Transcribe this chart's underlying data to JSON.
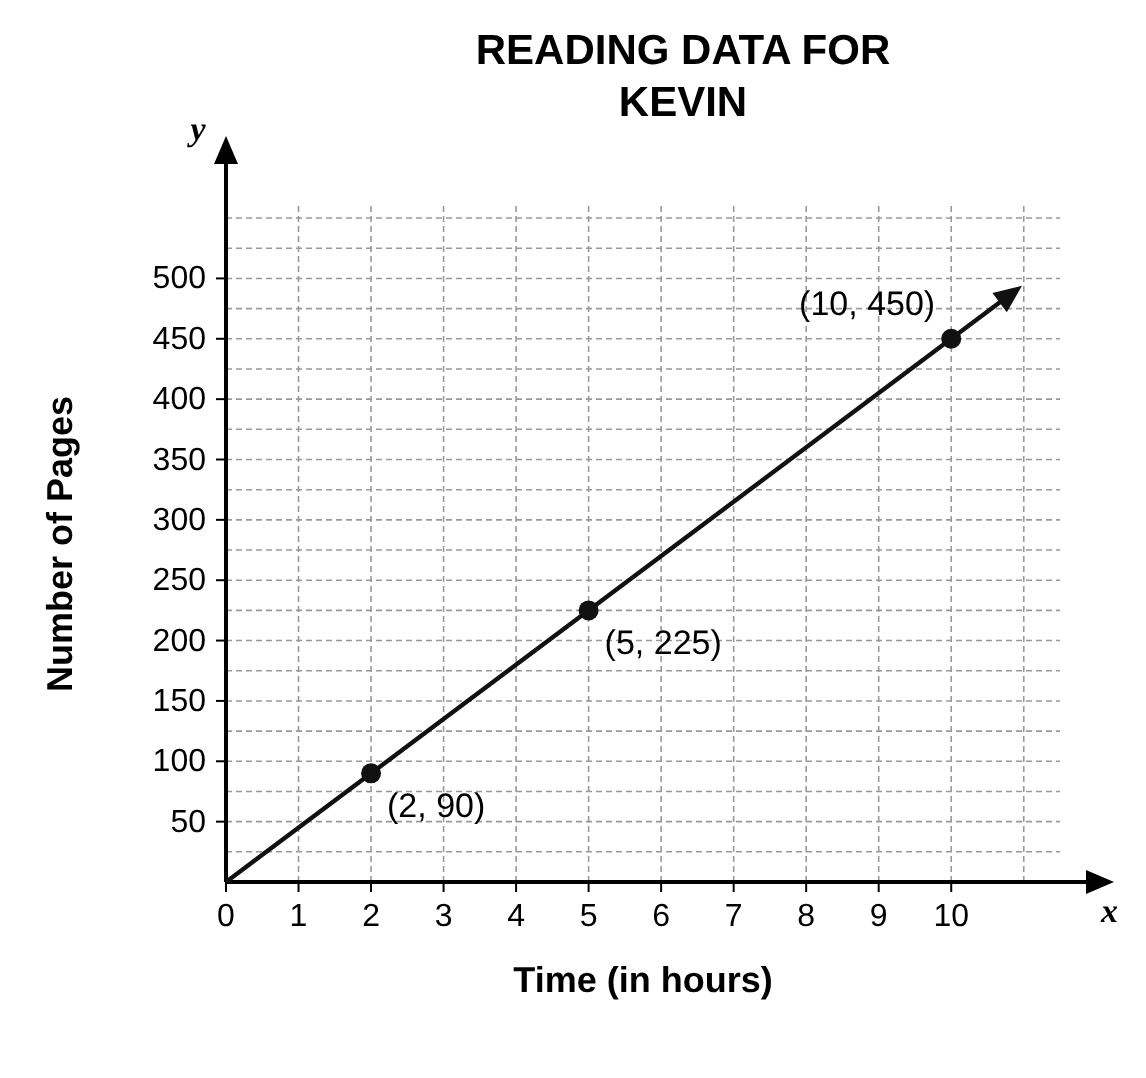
{
  "chart_data": {
    "type": "line",
    "title": "READING DATA FOR KEVIN",
    "xlabel": "Time (in hours)",
    "ylabel": "Number of Pages",
    "xlim": [
      0,
      11.5
    ],
    "ylim": [
      0,
      560
    ],
    "xticks": [
      0,
      1,
      2,
      3,
      4,
      5,
      6,
      7,
      8,
      9,
      10
    ],
    "yticks": [
      50,
      100,
      150,
      200,
      250,
      300,
      350,
      400,
      450,
      500
    ],
    "grid": true,
    "series": [
      {
        "color": "#111111",
        "x": [
          0,
          10.8
        ],
        "values": [
          0,
          486
        ]
      },
      {
        "type": "scatter",
        "color": "#111111",
        "x": [
          2,
          5,
          10
        ],
        "values": [
          90,
          225,
          450
        ],
        "marker": "circle"
      }
    ],
    "annotations": [
      {
        "text": "(2, 90)",
        "x": 2,
        "y": 90
      },
      {
        "text": "(5, 225)",
        "x": 5,
        "y": 225
      },
      {
        "text": "(10, 450)",
        "x": 10,
        "y": 450
      },
      "x",
      "y"
    ]
  }
}
